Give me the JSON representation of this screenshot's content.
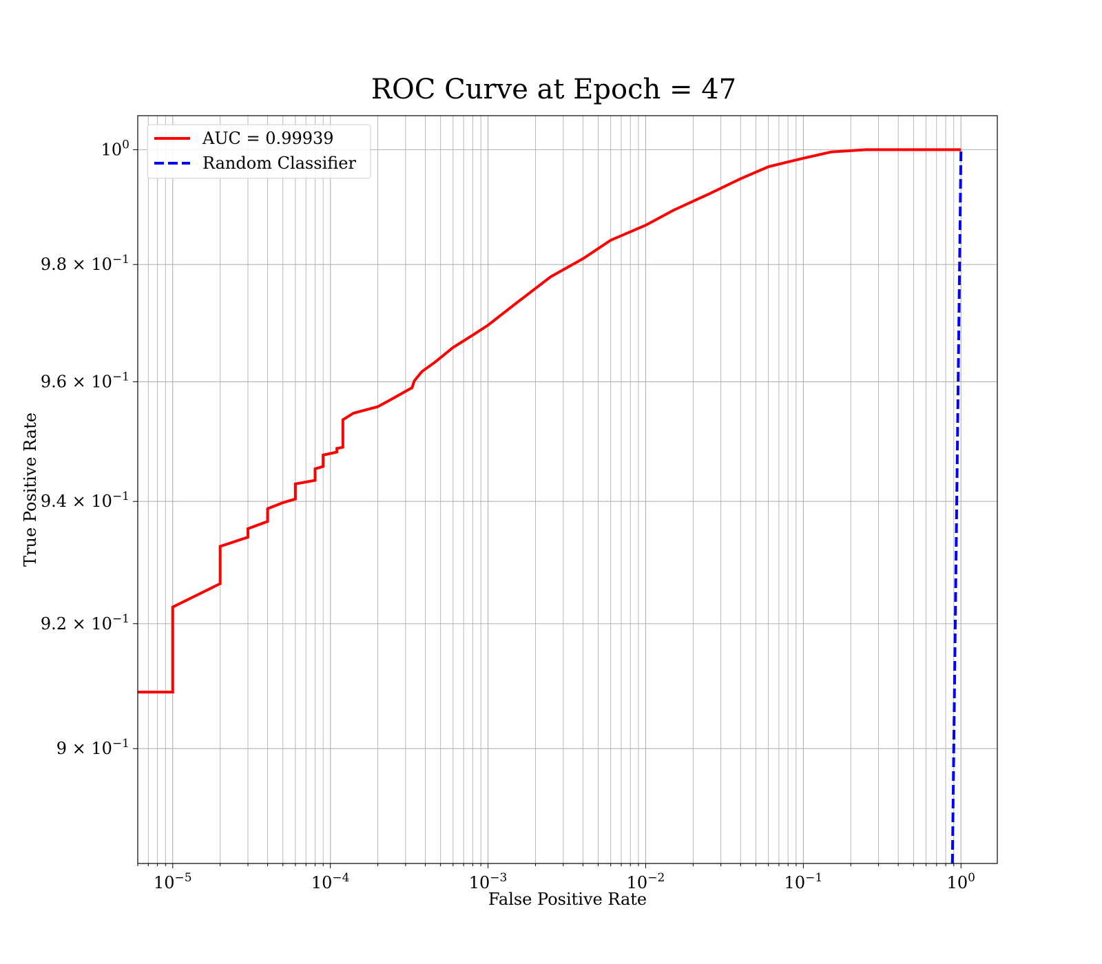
{
  "chart_data": {
    "type": "line",
    "title": "ROC Curve at Epoch = 47",
    "xlabel": "False Positive Rate",
    "ylabel": "True Positive Rate",
    "xscale": "log",
    "yscale": "log",
    "xlim": [
      6e-06,
      1.7
    ],
    "ylim": [
      0.882,
      1.006
    ],
    "grid": "both major and minor",
    "legend_position": "upper left",
    "x_ticks": [
      {
        "value": 1e-05,
        "base": "10",
        "exp": "−5"
      },
      {
        "value": 0.0001,
        "base": "10",
        "exp": "−4"
      },
      {
        "value": 0.001,
        "base": "10",
        "exp": "−3"
      },
      {
        "value": 0.01,
        "base": "10",
        "exp": "−2"
      },
      {
        "value": 0.1,
        "base": "10",
        "exp": "−1"
      },
      {
        "value": 1,
        "base": "10",
        "exp": "0"
      }
    ],
    "y_ticks": [
      {
        "value": 1.0,
        "base": "10",
        "exp": "0"
      },
      {
        "value": 0.98,
        "base": "9.8 × 10",
        "exp": "−1"
      },
      {
        "value": 0.96,
        "base": "9.6 × 10",
        "exp": "−1"
      },
      {
        "value": 0.94,
        "base": "9.4 × 10",
        "exp": "−1"
      },
      {
        "value": 0.92,
        "base": "9.2 × 10",
        "exp": "−1"
      },
      {
        "value": 0.9,
        "base": "9 × 10",
        "exp": "−1"
      }
    ],
    "series": [
      {
        "name": "AUC = 0.99939",
        "color": "#ff0000",
        "style": "solid",
        "x": [
          6e-06,
          1e-05,
          1e-05,
          2e-05,
          2e-05,
          3e-05,
          3e-05,
          4e-05,
          4e-05,
          5e-05,
          6e-05,
          6e-05,
          8e-05,
          8e-05,
          9e-05,
          9e-05,
          0.00011,
          0.00011,
          0.00012,
          0.00012,
          0.00014,
          0.0002,
          0.00025,
          0.00033,
          0.00034,
          0.00038,
          0.00046,
          0.0006,
          0.0008,
          0.001,
          0.0015,
          0.0025,
          0.004,
          0.006,
          0.01,
          0.015,
          0.025,
          0.04,
          0.06,
          0.1,
          0.15,
          0.25,
          0.5,
          1.0
        ],
        "y": [
          0.909,
          0.909,
          0.9227,
          0.9265,
          0.9326,
          0.9341,
          0.9355,
          0.9367,
          0.9388,
          0.9398,
          0.9404,
          0.9429,
          0.9435,
          0.9454,
          0.9458,
          0.9477,
          0.9482,
          0.9488,
          0.949,
          0.9536,
          0.9547,
          0.9558,
          0.9572,
          0.959,
          0.9601,
          0.9617,
          0.9633,
          0.9658,
          0.9679,
          0.9696,
          0.9733,
          0.9779,
          0.981,
          0.9842,
          0.9868,
          0.9894,
          0.9922,
          0.9949,
          0.997,
          0.9985,
          0.9996,
          1.0,
          1.0,
          1.0
        ]
      },
      {
        "name": "Random Classifier",
        "color": "#0000ff",
        "style": "dashed",
        "x": [
          0.882,
          1.0
        ],
        "y": [
          0.882,
          1.0
        ]
      }
    ]
  }
}
